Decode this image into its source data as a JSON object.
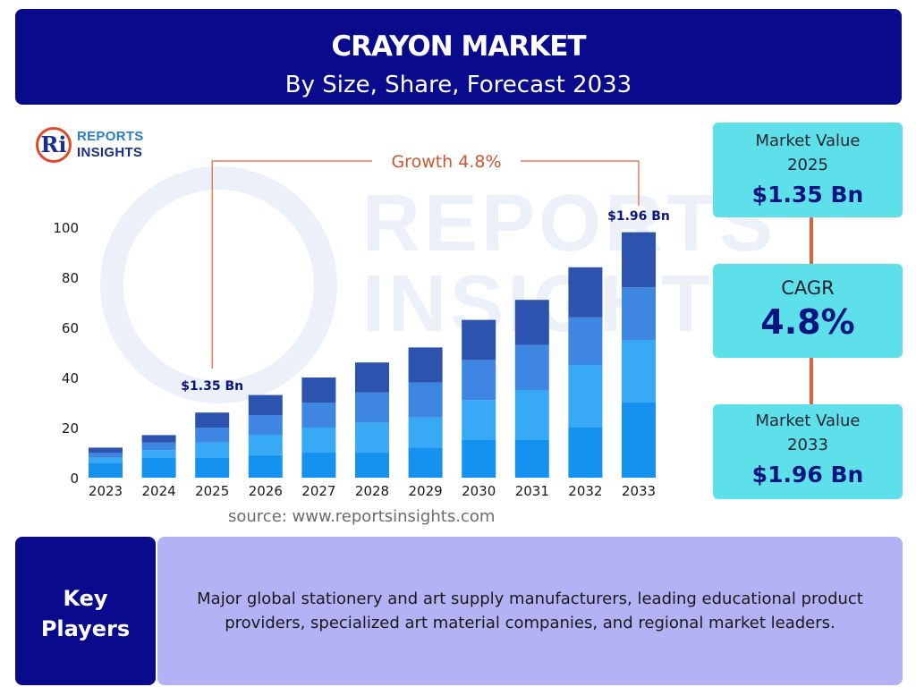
{
  "header": {
    "title": "CRAYON MARKET",
    "subtitle": "By Size, Share, Forecast 2033"
  },
  "logo": {
    "mark": "Ri",
    "line1": "REPORTS",
    "line2": "INSIGHTS"
  },
  "watermark": {
    "line1": "REPORTS",
    "line2": "INSIGHTS"
  },
  "growth_label": "Growth   4.8%",
  "chart_data": {
    "type": "bar",
    "stacked": true,
    "categories": [
      "2023",
      "2024",
      "2025",
      "2026",
      "2027",
      "2028",
      "2029",
      "2030",
      "2031",
      "2032",
      "2033"
    ],
    "series": [
      {
        "values": [
          6,
          8,
          8,
          9,
          10,
          10,
          12,
          15,
          15,
          20,
          30
        ],
        "color": "#1591ef"
      },
      {
        "values": [
          2,
          3,
          6,
          8,
          10,
          12,
          12,
          16,
          20,
          25,
          25
        ],
        "color": "#38a9f4"
      },
      {
        "values": [
          2,
          3,
          6,
          8,
          10,
          12,
          14,
          16,
          18,
          19,
          21
        ],
        "color": "#3f86e3"
      },
      {
        "values": [
          2,
          3,
          6,
          8,
          10,
          12,
          14,
          16,
          18,
          20,
          22
        ],
        "color": "#2c54ae"
      }
    ],
    "ylim": [
      0,
      100
    ],
    "yticks": [
      0,
      20,
      40,
      60,
      80,
      100
    ],
    "annotations": [
      {
        "category": "2025",
        "text": "$1.35 Bn"
      },
      {
        "category": "2033",
        "text": "$1.96 Bn"
      }
    ]
  },
  "source_text": "source: www.reportsinsights.com",
  "stats": {
    "market_value_2025": {
      "label": "Market Value 2025",
      "value": "$1.35 Bn"
    },
    "cagr": {
      "label": "CAGR",
      "value": "4.8%"
    },
    "market_value_2033": {
      "label": "Market Value 2033",
      "value": "$1.96 Bn"
    }
  },
  "key_players": {
    "label": "Key Players",
    "text": "Major global stationery and art supply manufacturers, leading educational product providers, specialized art material companies, and regional market leaders."
  },
  "colors": {
    "header_bg": "#0a0a8c",
    "stat_box_bg": "#5ee0ea",
    "connector": "#e0613a",
    "key_panel_bg": "#b2b2f5"
  }
}
